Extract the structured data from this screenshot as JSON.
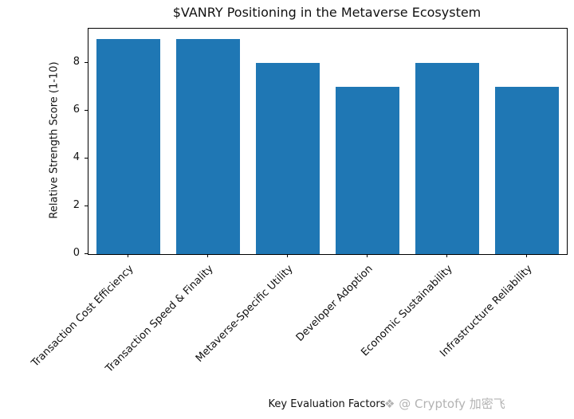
{
  "title": "$VANRY Positioning in the Metaverse Ecosystem",
  "watermark": {
    "icon": "❖",
    "text": "@ Cryptofy 加密飞"
  },
  "chart_data": {
    "type": "bar",
    "title": "$VANRY Positioning in the Metaverse Ecosystem",
    "categories": [
      "Transaction Cost Efficiency",
      "Transaction Speed & Finality",
      "Metaverse-Specific Utility",
      "Developer Adoption",
      "Economic Sustainability",
      "Infrastructure Reliability"
    ],
    "values": [
      9,
      9,
      8,
      7,
      8,
      7
    ],
    "xlabel": "Key Evaluation Factors",
    "ylabel": "Relative Strength Score (1-10)",
    "ylim": [
      0,
      9.45
    ],
    "yticks": [
      0,
      2,
      4,
      6,
      8
    ],
    "bar_color": "#1f77b4",
    "grid": false,
    "legend": null
  }
}
